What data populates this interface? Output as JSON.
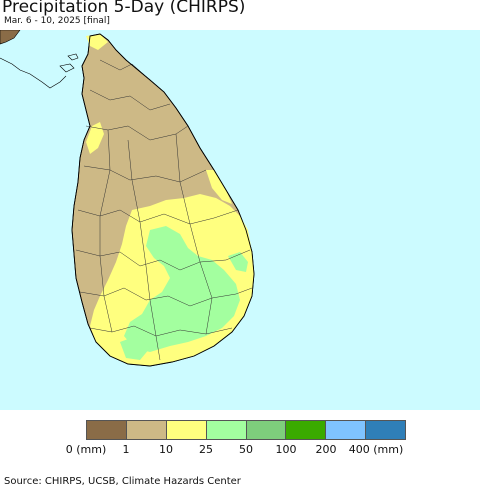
{
  "header": {
    "title": "Precipitation 5-Day (CHIRPS)",
    "subtitle": "Mar. 6 - 10, 2025 [final]"
  },
  "map": {
    "ocean_color": "#ccfbff",
    "region": "Sri Lanka"
  },
  "legend": {
    "colors": [
      "#8a6c47",
      "#cdb986",
      "#ffff7f",
      "#a3ff9f",
      "#7ece7c",
      "#3aaa00",
      "#7fc3ff",
      "#2f7fb8"
    ],
    "labels": [
      "0 (mm)",
      "1",
      "10",
      "25",
      "50",
      "100",
      "200",
      "400 (mm)"
    ]
  },
  "footer": {
    "source": "Source: CHIRPS, UCSB, Climate Hazards Center"
  }
}
